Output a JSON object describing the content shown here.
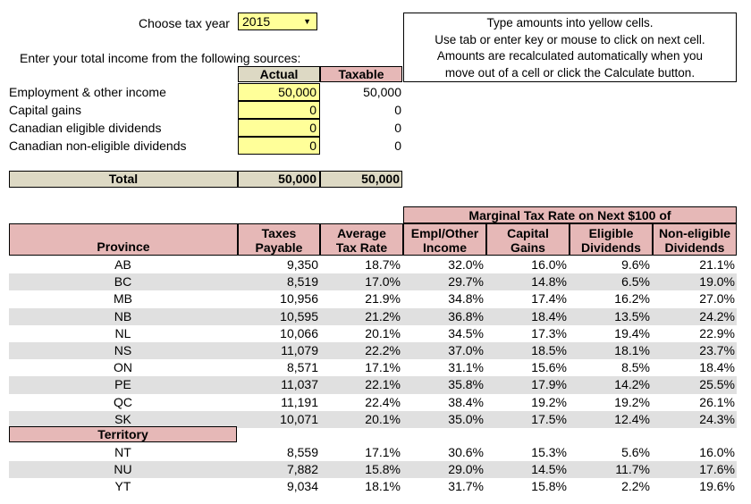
{
  "header": {
    "tax_year_label": "Choose tax year",
    "tax_year_value": "2015",
    "instructions": [
      "Type amounts into yellow cells.",
      "Use tab or enter key or mouse to click on next cell.",
      "Amounts are recalculated automatically when you",
      "move out of a cell or click the Calculate button."
    ]
  },
  "income": {
    "intro": "Enter your total income from the following sources:",
    "col_actual": "Actual",
    "col_taxable": "Taxable",
    "rows": [
      {
        "label": "Employment & other income",
        "actual": "50,000",
        "taxable": "50,000"
      },
      {
        "label": "Capital gains",
        "actual": "0",
        "taxable": "0"
      },
      {
        "label": "Canadian eligible dividends",
        "actual": "0",
        "taxable": "0"
      },
      {
        "label": "Canadian non-eligible dividends",
        "actual": "0",
        "taxable": "0"
      }
    ],
    "total_label": "Total",
    "total_actual": "50,000",
    "total_taxable": "50,000"
  },
  "results": {
    "marginal_header": "Marginal Tax Rate on Next $100 of",
    "columns": {
      "province": "Province",
      "taxes_l1": "Taxes",
      "taxes_l2": "Payable",
      "avg_l1": "Average",
      "avg_l2": "Tax Rate",
      "m1_l1": "Empl/Other",
      "m1_l2": "Income",
      "m2_l1": "Capital",
      "m2_l2": "Gains",
      "m3_l1": "Eligible",
      "m3_l2": "Dividends",
      "m4_l1": "Non-eligible",
      "m4_l2": "Dividends"
    },
    "provinces": [
      {
        "name": "AB",
        "taxes": "9,350",
        "avg": "18.7%",
        "m1": "32.0%",
        "m2": "16.0%",
        "m3": "9.6%",
        "m4": "21.1%"
      },
      {
        "name": "BC",
        "taxes": "8,519",
        "avg": "17.0%",
        "m1": "29.7%",
        "m2": "14.8%",
        "m3": "6.5%",
        "m4": "19.0%"
      },
      {
        "name": "MB",
        "taxes": "10,956",
        "avg": "21.9%",
        "m1": "34.8%",
        "m2": "17.4%",
        "m3": "16.2%",
        "m4": "27.0%"
      },
      {
        "name": "NB",
        "taxes": "10,595",
        "avg": "21.2%",
        "m1": "36.8%",
        "m2": "18.4%",
        "m3": "13.5%",
        "m4": "24.2%"
      },
      {
        "name": "NL",
        "taxes": "10,066",
        "avg": "20.1%",
        "m1": "34.5%",
        "m2": "17.3%",
        "m3": "19.4%",
        "m4": "22.9%"
      },
      {
        "name": "NS",
        "taxes": "11,079",
        "avg": "22.2%",
        "m1": "37.0%",
        "m2": "18.5%",
        "m3": "18.1%",
        "m4": "23.7%"
      },
      {
        "name": "ON",
        "taxes": "8,571",
        "avg": "17.1%",
        "m1": "31.1%",
        "m2": "15.6%",
        "m3": "8.5%",
        "m4": "18.4%"
      },
      {
        "name": "PE",
        "taxes": "11,037",
        "avg": "22.1%",
        "m1": "35.8%",
        "m2": "17.9%",
        "m3": "14.2%",
        "m4": "25.5%"
      },
      {
        "name": "QC",
        "taxes": "11,191",
        "avg": "22.4%",
        "m1": "38.4%",
        "m2": "19.2%",
        "m3": "19.2%",
        "m4": "26.1%"
      },
      {
        "name": "SK",
        "taxes": "10,071",
        "avg": "20.1%",
        "m1": "35.0%",
        "m2": "17.5%",
        "m3": "12.4%",
        "m4": "24.3%"
      }
    ],
    "territory_header": "Territory",
    "territories": [
      {
        "name": "NT",
        "taxes": "8,559",
        "avg": "17.1%",
        "m1": "30.6%",
        "m2": "15.3%",
        "m3": "5.6%",
        "m4": "16.0%"
      },
      {
        "name": "NU",
        "taxes": "7,882",
        "avg": "15.8%",
        "m1": "29.0%",
        "m2": "14.5%",
        "m3": "11.7%",
        "m4": "17.6%"
      },
      {
        "name": "YT",
        "taxes": "9,034",
        "avg": "18.1%",
        "m1": "31.7%",
        "m2": "15.8%",
        "m3": "2.2%",
        "m4": "19.6%"
      }
    ]
  }
}
